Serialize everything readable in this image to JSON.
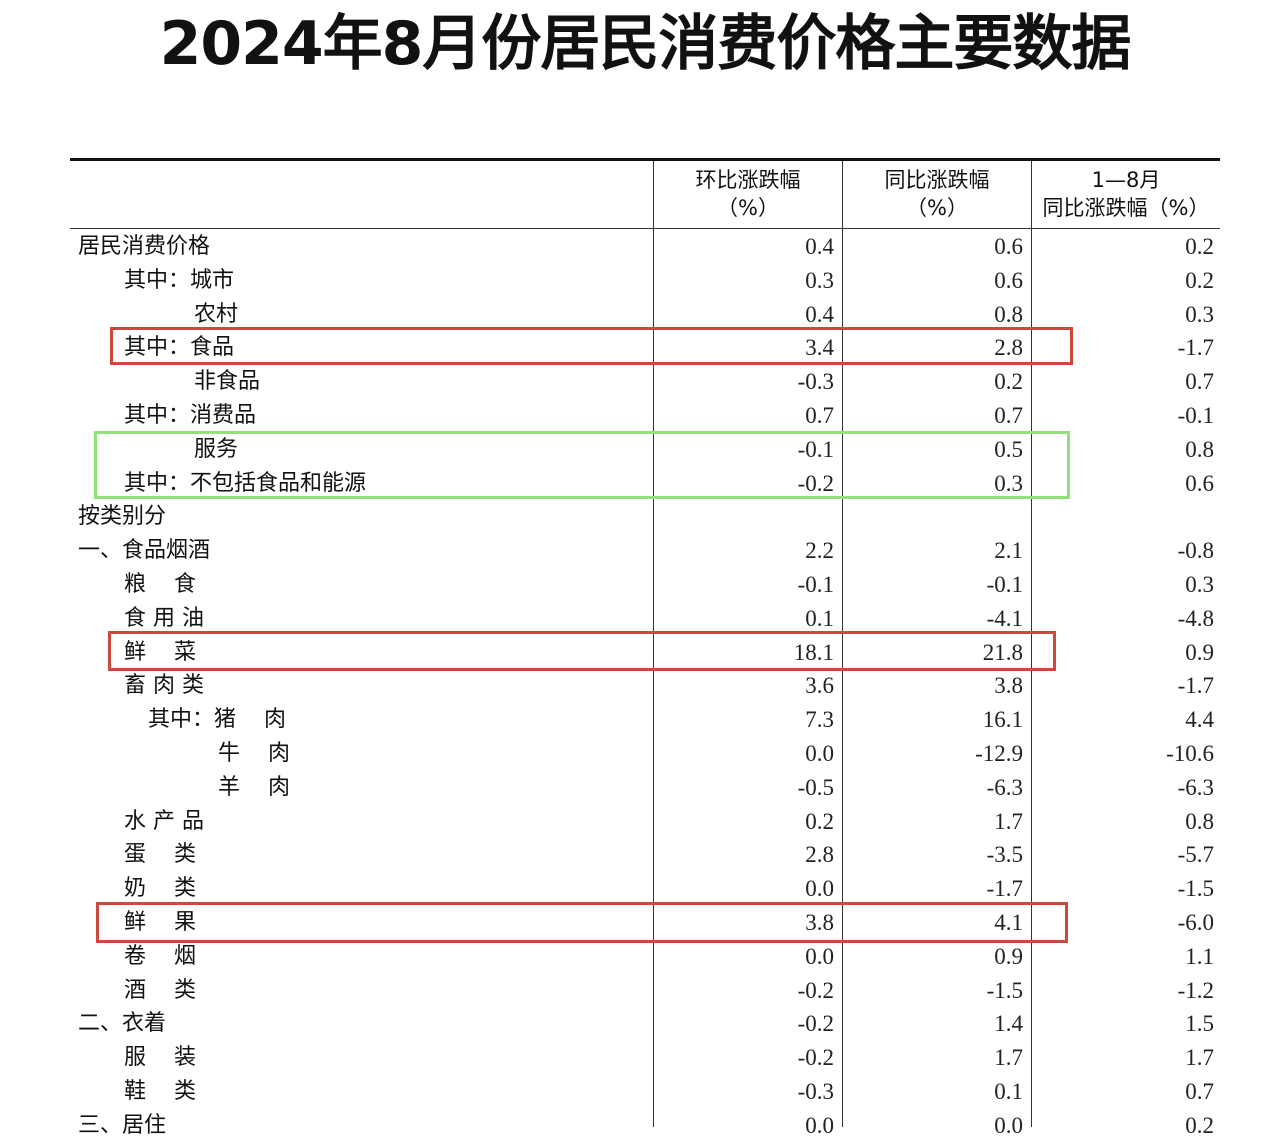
{
  "title": "2024年8月份居民消费价格主要数据",
  "headers": {
    "mom": [
      "环比涨跌幅",
      "（%）"
    ],
    "yoy": [
      "同比涨跌幅",
      "（%）"
    ],
    "ytd": [
      "1—8月",
      "同比涨跌幅（%）"
    ]
  },
  "rows": [
    {
      "label": "居民消费价格",
      "mom": "0.4",
      "yoy": "0.6",
      "ytd": "0.2"
    },
    {
      "label": "其中：城市",
      "mom": "0.3",
      "yoy": "0.6",
      "ytd": "0.2"
    },
    {
      "label": "农村",
      "mom": "0.4",
      "yoy": "0.8",
      "ytd": "0.3"
    },
    {
      "label": "其中：食品",
      "mom": "3.4",
      "yoy": "2.8",
      "ytd": "-1.7"
    },
    {
      "label": "非食品",
      "mom": "-0.3",
      "yoy": "0.2",
      "ytd": "0.7"
    },
    {
      "label": "其中：消费品",
      "mom": "0.7",
      "yoy": "0.7",
      "ytd": "-0.1"
    },
    {
      "label": "服务",
      "mom": "-0.1",
      "yoy": "0.5",
      "ytd": "0.8"
    },
    {
      "label": "其中：不包括食品和能源",
      "mom": "-0.2",
      "yoy": "0.3",
      "ytd": "0.6"
    },
    {
      "label": "按类别分",
      "mom": "",
      "yoy": "",
      "ytd": ""
    },
    {
      "label": "一、食品烟酒",
      "mom": "2.2",
      "yoy": "2.1",
      "ytd": "-0.8"
    },
    {
      "label": "粮    食",
      "mom": "-0.1",
      "yoy": "-0.1",
      "ytd": "0.3"
    },
    {
      "label": "食 用 油",
      "mom": "0.1",
      "yoy": "-4.1",
      "ytd": "-4.8"
    },
    {
      "label": "鲜    菜",
      "mom": "18.1",
      "yoy": "21.8",
      "ytd": "0.9"
    },
    {
      "label": "畜 肉 类",
      "mom": "3.6",
      "yoy": "3.8",
      "ytd": "-1.7"
    },
    {
      "label": "其中：猪    肉",
      "mom": "7.3",
      "yoy": "16.1",
      "ytd": "4.4"
    },
    {
      "label": "牛    肉",
      "mom": "0.0",
      "yoy": "-12.9",
      "ytd": "-10.6"
    },
    {
      "label": "羊    肉",
      "mom": "-0.5",
      "yoy": "-6.3",
      "ytd": "-6.3"
    },
    {
      "label": "水 产 品",
      "mom": "0.2",
      "yoy": "1.7",
      "ytd": "0.8"
    },
    {
      "label": "蛋    类",
      "mom": "2.8",
      "yoy": "-3.5",
      "ytd": "-5.7"
    },
    {
      "label": "奶    类",
      "mom": "0.0",
      "yoy": "-1.7",
      "ytd": "-1.5"
    },
    {
      "label": "鲜    果",
      "mom": "3.8",
      "yoy": "4.1",
      "ytd": "-6.0"
    },
    {
      "label": "卷    烟",
      "mom": "0.0",
      "yoy": "0.9",
      "ytd": "1.1"
    },
    {
      "label": "酒    类",
      "mom": "-0.2",
      "yoy": "-1.5",
      "ytd": "-1.2"
    },
    {
      "label": "二、衣着",
      "mom": "-0.2",
      "yoy": "1.4",
      "ytd": "1.5"
    },
    {
      "label": "服    装",
      "mom": "-0.2",
      "yoy": "1.7",
      "ytd": "1.7"
    },
    {
      "label": "鞋    类",
      "mom": "-0.3",
      "yoy": "0.1",
      "ytd": "0.7"
    },
    {
      "label": "三、居住",
      "mom": "0.0",
      "yoy": "0.0",
      "ytd": "0.2"
    }
  ],
  "highlight_colors": {
    "red": "#cc4a3c",
    "green": "#94e07e"
  }
}
